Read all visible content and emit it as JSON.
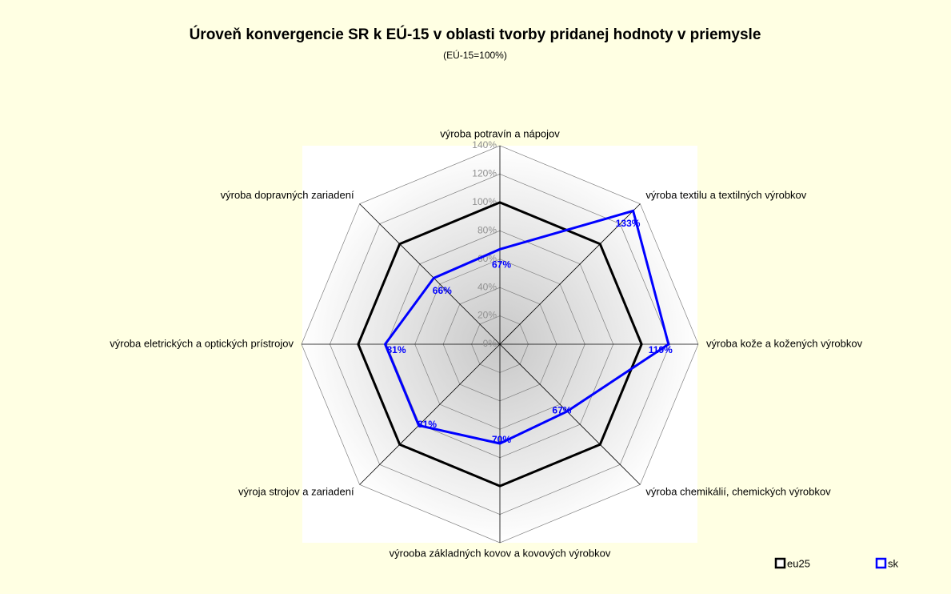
{
  "chart_data": {
    "type": "radar",
    "title": "Úroveň konvergencie SR k EÚ-15 v oblasti tvorby pridanej hodnoty v priemysle",
    "subtitle": "(EÚ-15=100%)",
    "categories": [
      "výroba potravín a nápojov",
      "výroba textilu a textilných výrobkov",
      "výroba kože a kožených výrobkov",
      "výroba chemikálií, chemických výrobkov",
      "výrooba základných kovov a kovových výrobkov",
      "výroja strojov a zariadení",
      "výroba eletrických a optických prístrojov",
      "výroba dopravných zariadení"
    ],
    "series": [
      {
        "name": "eu25",
        "color": "#000000",
        "values": [
          100,
          100,
          100,
          100,
          100,
          100,
          100,
          100
        ]
      },
      {
        "name": "sk",
        "color": "#0000ff",
        "values": [
          67,
          133,
          119,
          67,
          70,
          81,
          81,
          66
        ],
        "value_labels": [
          "67%",
          "133%",
          "119%",
          "67%",
          "70%",
          "81%",
          "81%",
          "66%"
        ]
      }
    ],
    "ylim": [
      0,
      140
    ],
    "yticks": [
      {
        "value": 0,
        "label": "0%"
      },
      {
        "value": 20,
        "label": "20%"
      },
      {
        "value": 40,
        "label": "40%"
      },
      {
        "value": 60,
        "label": "60%"
      },
      {
        "value": 80,
        "label": "80%"
      },
      {
        "value": 100,
        "label": "100%"
      },
      {
        "value": 120,
        "label": "120%"
      },
      {
        "value": 140,
        "label": "140%"
      }
    ],
    "legend": "bottom-right"
  }
}
